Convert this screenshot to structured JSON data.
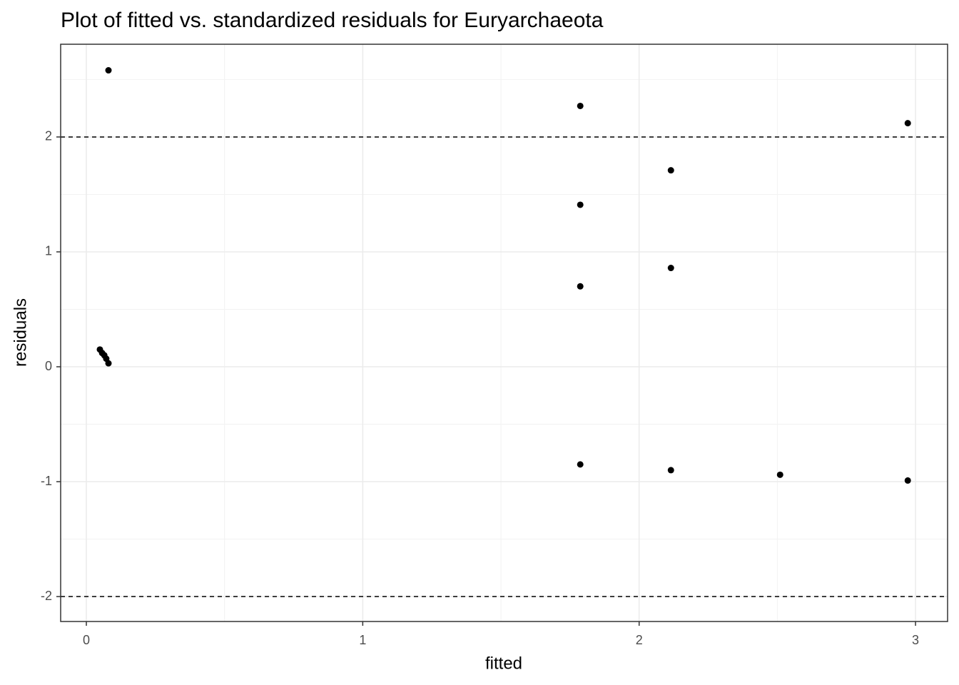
{
  "chart_data": {
    "type": "scatter",
    "title": "Plot of fitted vs. standardized residuals for Euryarchaeota",
    "xlabel": "fitted",
    "ylabel": "residuals",
    "x": [
      0.08,
      0.049,
      0.057,
      0.065,
      0.072,
      0.08,
      1.787,
      1.787,
      1.787,
      1.787,
      2.115,
      2.115,
      2.115,
      2.51,
      2.972,
      2.972
    ],
    "y": [
      2.58,
      0.15,
      0.12,
      0.1,
      0.07,
      0.03,
      2.27,
      1.41,
      0.7,
      -0.85,
      1.71,
      0.86,
      -0.9,
      -0.94,
      2.12,
      -0.99
    ],
    "color": "#000000",
    "xlim": [
      -0.093,
      3.116
    ],
    "ylim": [
      -2.217,
      2.807
    ],
    "xticks": [
      0,
      1,
      2,
      3
    ],
    "yticks": [
      -2,
      -1,
      0,
      1,
      2
    ],
    "hlines": [
      2,
      -2
    ],
    "grid": true,
    "minor_grid": true
  }
}
